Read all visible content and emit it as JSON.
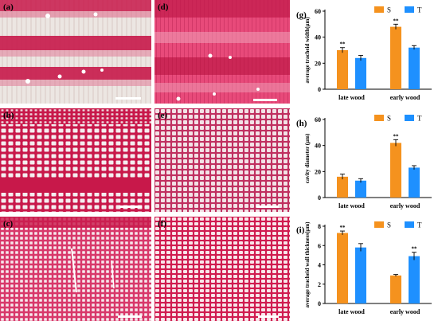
{
  "panels": [
    {
      "label": "(a)",
      "type": "micrograph",
      "style": "cross-section-banded"
    },
    {
      "label": "(b)",
      "type": "micrograph",
      "style": "cells-band"
    },
    {
      "label": "(c)",
      "type": "micrograph",
      "style": "cells-dense"
    },
    {
      "label": "(d)",
      "type": "micrograph",
      "style": "cross-section-pink"
    },
    {
      "label": "(e)",
      "type": "micrograph",
      "style": "cells-light"
    },
    {
      "label": "(f)",
      "type": "micrograph",
      "style": "cells-red"
    }
  ],
  "colors": {
    "S": "#f5921e",
    "T": "#1e90ff",
    "stain_dark": "#c8184a",
    "stain_light": "#e8c6cc"
  },
  "chart_data": [
    {
      "panel_label": "(g)",
      "type": "bar",
      "categories": [
        "late wood",
        "early wood"
      ],
      "series": [
        {
          "name": "S",
          "values": [
            30,
            48
          ],
          "errors": [
            2,
            2
          ],
          "sig": [
            "**",
            "**"
          ]
        },
        {
          "name": "T",
          "values": [
            24,
            32
          ],
          "errors": [
            2,
            1.5
          ],
          "sig": [
            "",
            ""
          ]
        }
      ],
      "ylabel": "average tracheid width(μm)",
      "ylim": [
        0,
        60
      ],
      "yticks": [
        0,
        20,
        40,
        60
      ],
      "legend": "top-right"
    },
    {
      "panel_label": "(h)",
      "type": "bar",
      "categories": [
        "late wood",
        "early wood"
      ],
      "series": [
        {
          "name": "S",
          "values": [
            16,
            42
          ],
          "errors": [
            2,
            2.5
          ],
          "sig": [
            "",
            "**"
          ]
        },
        {
          "name": "T",
          "values": [
            13,
            23
          ],
          "errors": [
            1.5,
            1.5
          ],
          "sig": [
            "",
            ""
          ]
        }
      ],
      "ylabel": "cavity diameter (μm)",
      "ylim": [
        0,
        60
      ],
      "yticks": [
        0,
        20,
        40,
        60
      ],
      "legend": "top-right"
    },
    {
      "panel_label": "(i)",
      "type": "bar",
      "categories": [
        "late wood",
        "early wood"
      ],
      "series": [
        {
          "name": "S",
          "values": [
            7.3,
            2.9
          ],
          "errors": [
            0.2,
            0.1
          ],
          "sig": [
            "**",
            ""
          ]
        },
        {
          "name": "T",
          "values": [
            5.8,
            4.9
          ],
          "errors": [
            0.4,
            0.4
          ],
          "sig": [
            "",
            "**"
          ]
        }
      ],
      "ylabel": "average tracheid wall thickness(μm)",
      "ylim": [
        0,
        8
      ],
      "yticks": [
        0,
        2,
        4,
        6,
        8
      ],
      "legend": "top-right"
    }
  ]
}
